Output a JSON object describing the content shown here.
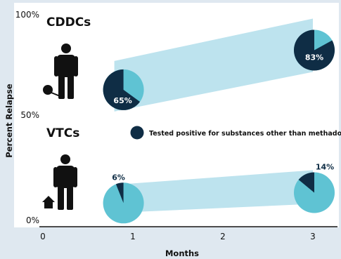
{
  "chart_data": {
    "type": "pie",
    "ylabel": "Percent Relapse",
    "xlabel": "Months",
    "x_ticks": [
      "0",
      "1",
      "2",
      "3"
    ],
    "y_ticks": [
      "100%",
      "50%",
      "0%"
    ],
    "legend": {
      "label": "Tested positive for substances other than methadone",
      "color": "#0f2d45"
    },
    "groups": [
      {
        "name": "CDDCs",
        "icon": "person-with-ball-and-chain-icon",
        "points": [
          {
            "month": 0.7,
            "relapse_pct": 64,
            "tested_positive_pct": 65,
            "label": "65%"
          },
          {
            "month": 3.0,
            "relapse_pct": 83,
            "tested_positive_pct": 83,
            "label": "83%"
          }
        ]
      },
      {
        "name": "VTCs",
        "icon": "person-with-home-icon",
        "points": [
          {
            "month": 0.7,
            "relapse_pct": 10,
            "tested_positive_pct": 6,
            "label": "6%"
          },
          {
            "month": 3.0,
            "relapse_pct": 15,
            "tested_positive_pct": 14,
            "label": "14%"
          }
        ]
      }
    ],
    "colors": {
      "band": "#bde3ee",
      "pie_light": "#5fc3d3",
      "pie_dark": "#0f2d45",
      "axis": "#111111"
    }
  }
}
